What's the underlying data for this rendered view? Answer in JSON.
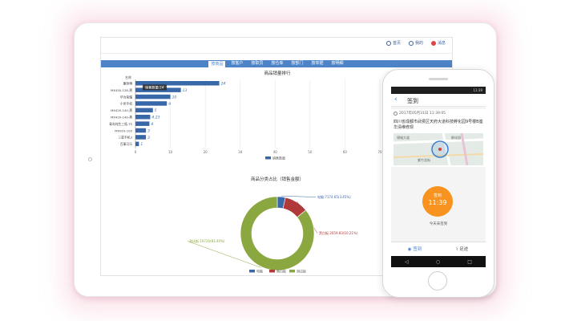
{
  "tablet": {
    "top_links": [
      {
        "icon": "home-icon",
        "label": "首页"
      },
      {
        "icon": "user-icon",
        "label": "我的"
      },
      {
        "icon": "bell-icon",
        "label": "消息"
      }
    ],
    "nav_tabs": [
      "按商品",
      "按客户",
      "按职员",
      "按仓库",
      "按部门",
      "按单据",
      "按明细"
    ],
    "active_tab": 0
  },
  "chart_data": [
    {
      "type": "bar",
      "orientation": "horizontal",
      "title": "商品销量排行",
      "categories_label": "名称",
      "categories": [
        "康帅傅",
        "MX450-128-黑",
        "华为荣耀",
        "小米手机",
        "MX420-140-黑",
        "MX420-140-黑",
        "青岛纯生三瓶-TS",
        "MX003-100",
        "三星手机3",
        "百事可乐"
      ],
      "values": [
        24,
        13,
        10,
        9,
        5,
        4.23,
        4,
        3,
        3,
        1
      ],
      "xlim": [
        0,
        70
      ],
      "xticks": [
        0,
        10,
        20,
        30,
        40,
        50,
        60,
        70
      ],
      "legend": [
        "销售数量"
      ],
      "tooltip": "销售数量:24",
      "color": "#3868a8"
    },
    {
      "type": "pie",
      "style": "donut",
      "title": "商品分类占比（销售金额）",
      "slices": [
        {
          "name": "电脑",
          "label": "电脑:7174.65(3.45%)",
          "value": 3.45,
          "color": "#3868a8"
        },
        {
          "name": "黑白板",
          "label": "黑白板:2059.83(10.21%)",
          "value": 10.21,
          "color": "#b03a3a"
        },
        {
          "name": "测试板",
          "label": "测试板:19720(83.40%)",
          "value": 83.4,
          "color": "#8aa83f"
        }
      ],
      "legend": [
        "电脑",
        "黑白板",
        "测试板"
      ]
    }
  ],
  "phone": {
    "status_time": "11:39",
    "title": "签到",
    "datetime": "2017年05月31日 11:39:05",
    "address": "四川省成都市武侯区天府大道科技孵化园9号楼B座华清维修现",
    "map_labels": [
      "锦城大道",
      "孵化园",
      "紫竹北街"
    ],
    "checkin_label": "签到",
    "checkin_time": "11:39",
    "note": "今天未签到",
    "tabs": [
      "签到",
      "足迹"
    ]
  }
}
